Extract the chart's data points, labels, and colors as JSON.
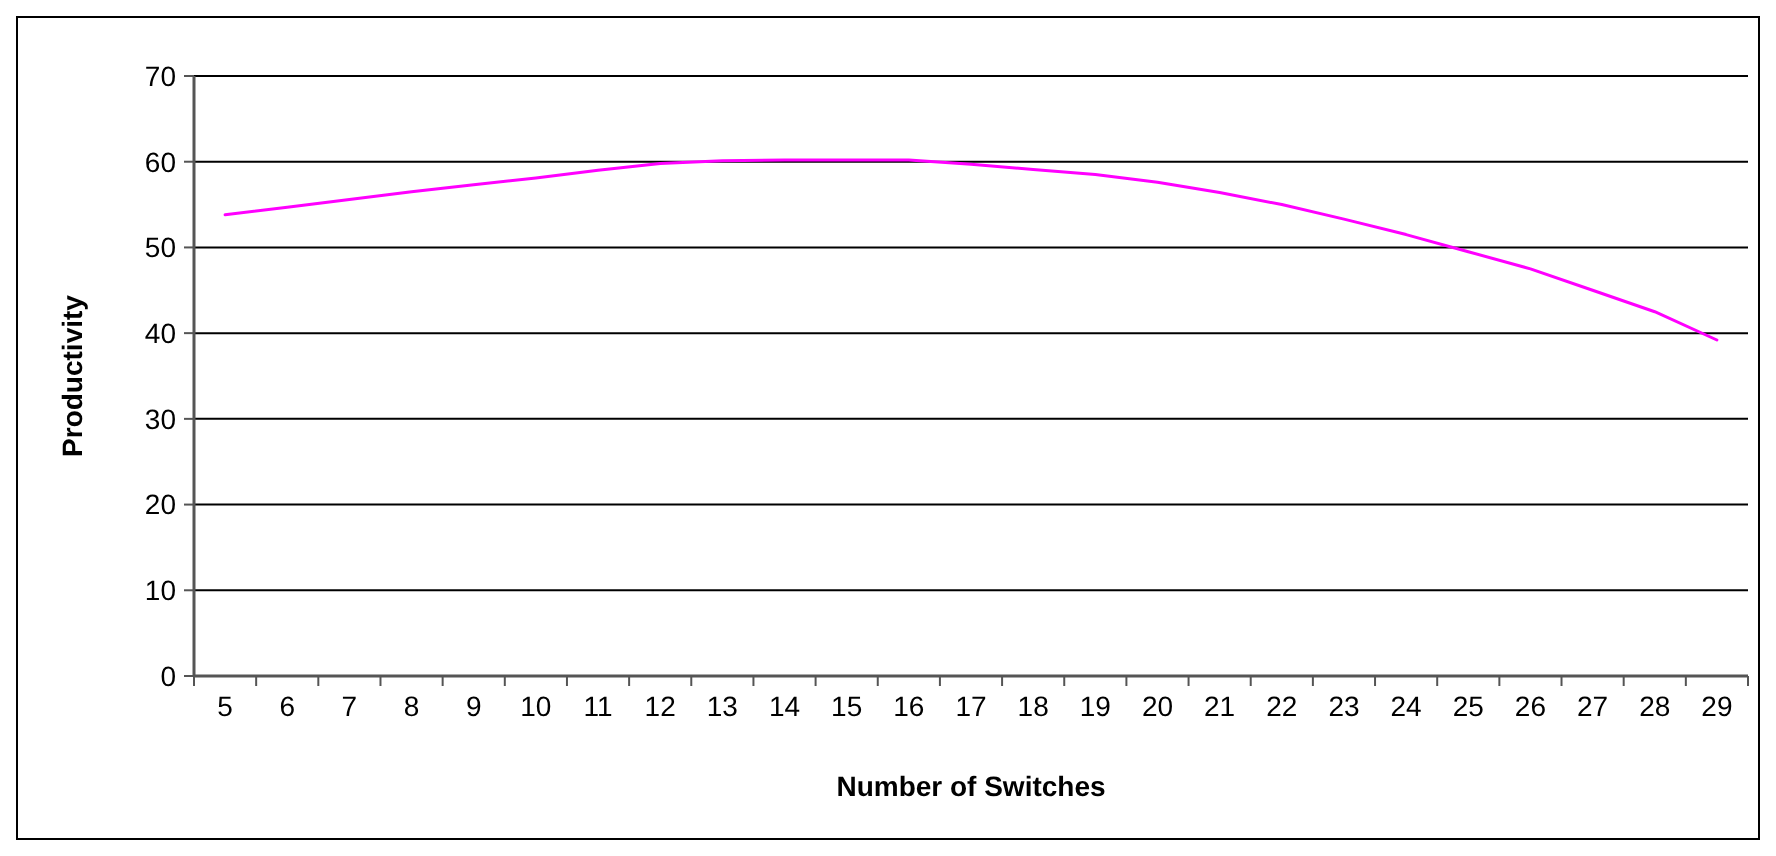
{
  "chart_data": {
    "type": "line",
    "xlabel": "Number of Switches",
    "ylabel": "Productivity",
    "categories": [
      "5",
      "6",
      "7",
      "8",
      "9",
      "10",
      "11",
      "12",
      "13",
      "14",
      "15",
      "16",
      "17",
      "18",
      "19",
      "20",
      "21",
      "22",
      "23",
      "24",
      "25",
      "26",
      "27",
      "28",
      "29"
    ],
    "series": [
      {
        "color": "#ff00ff",
        "values": [
          53.8,
          54.7,
          55.6,
          56.5,
          57.3,
          58.1,
          59.0,
          59.8,
          60.1,
          60.2,
          60.2,
          60.2,
          59.7,
          59.1,
          58.5,
          57.6,
          56.4,
          55.0,
          53.3,
          51.5,
          49.5,
          47.5,
          45.0,
          42.5,
          39.2
        ]
      }
    ],
    "ylim": [
      0,
      70
    ],
    "yticks": [
      0,
      10,
      20,
      30,
      40,
      50,
      60,
      70
    ],
    "grid": "y",
    "marker": "none",
    "line_style": "solid"
  }
}
